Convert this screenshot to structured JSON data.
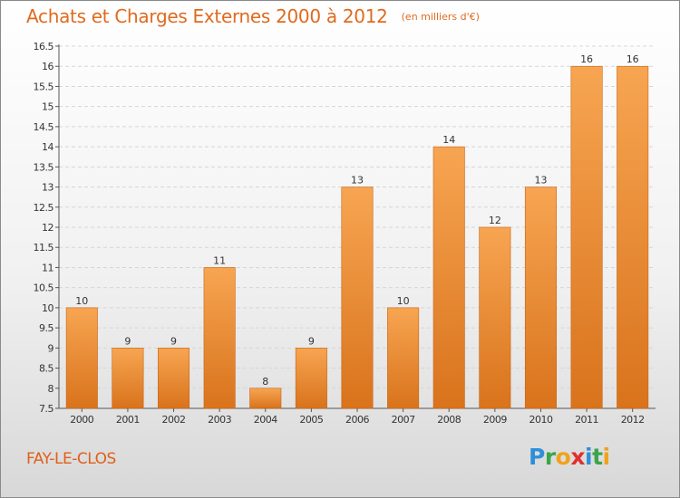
{
  "header": {
    "title": "Achats et Charges Externes 2000 à 2012",
    "subtitle": "(en milliers d'€)"
  },
  "footer": {
    "town": "FAY-LE-CLOS",
    "brand_letters": [
      {
        "char": "P",
        "color": "#2f8fd8"
      },
      {
        "char": "r",
        "color": "#3aa64a"
      },
      {
        "char": "o",
        "color": "#f0a21c"
      },
      {
        "char": "x",
        "color": "#e2302f"
      },
      {
        "char": "i",
        "color": "#2f8fd8"
      },
      {
        "char": "t",
        "color": "#3aa64a"
      },
      {
        "char": "i",
        "color": "#f0a21c"
      }
    ]
  },
  "chart_data": {
    "type": "bar",
    "title": "Achats et Charges Externes 2000 à 2012",
    "subtitle": "(en milliers d'€)",
    "xlabel": "",
    "ylabel": "",
    "categories": [
      "2000",
      "2001",
      "2002",
      "2003",
      "2004",
      "2005",
      "2006",
      "2007",
      "2008",
      "2009",
      "2010",
      "2011",
      "2012"
    ],
    "values": [
      10,
      9,
      9,
      11,
      8,
      9,
      13,
      10,
      14,
      12,
      13,
      16,
      16
    ],
    "value_labels": [
      "10",
      "9",
      "9",
      "11",
      "8",
      "9",
      "13",
      "10",
      "14",
      "12",
      "13",
      "16",
      "16"
    ],
    "ylim": [
      7.5,
      16.5
    ],
    "yticks": [
      7.5,
      8,
      8.5,
      9,
      9.5,
      10,
      10.5,
      11,
      11.5,
      12,
      12.5,
      13,
      13.5,
      14,
      14.5,
      15,
      15.5,
      16,
      16.5
    ],
    "ytick_labels": [
      "7.5",
      "8",
      "8.5",
      "9",
      "9.5",
      "10",
      "10.5",
      "11",
      "11.5",
      "12",
      "12.5",
      "13",
      "13.5",
      "14",
      "14.5",
      "15",
      "15.5",
      "16",
      "16.5"
    ],
    "grid": true,
    "legend": "none",
    "colors": {
      "bar_light": "#f7a552",
      "bar_dark": "#d9731c",
      "bar_edge": "#c86414",
      "grid": "#d6d6d6",
      "axis": "#555555",
      "text": "#333333"
    }
  }
}
